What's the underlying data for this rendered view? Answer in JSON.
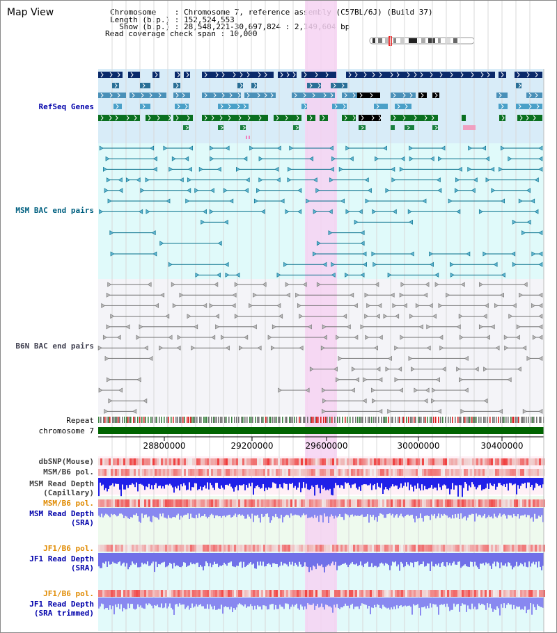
{
  "view_title": "Map View",
  "info": {
    "chromosome": "Chromosome    : Chromosome 7, reference assembly (C57BL/6J) (Build 37)",
    "length": "Length (b.p.) : 152,524,553",
    "show": "  Show (b.p.) : 28,548,221-30,697,824 : 2,149,604 bp",
    "span": "Read coverage check span : 10,000"
  },
  "labels": {
    "refseq": "RefSeq Genes",
    "msm_bac": "MSM BAC end pairs",
    "b6n_bac": "B6N BAC end pairs",
    "repeat": "Repeat",
    "chromosome": "chromosome 7",
    "dbsnp": "dbSNP(Mouse)",
    "msm_pol_1": "MSM/B6 pol.",
    "msm_depth_cap": "MSM Read Depth\n(Capillary)",
    "msm_pol_2": "MSM/B6 pol.",
    "msm_depth_sra": "MSM Read Depth\n(SRA)",
    "jf1_pol_1": "JF1/B6 pol.",
    "jf1_depth_sra": "JF1 Read Depth\n(SRA)",
    "jf1_pol_2": "JF1/B6 pol.",
    "jf1_depth_trim": "JF1 Read Depth\n(SRA trimmed)"
  },
  "axis_ticks": [
    "28800000",
    "29200000",
    "29600000",
    "30000000",
    "30400000"
  ],
  "colors": {
    "highlight": "#f6d2f2",
    "refseq_bg": "#d8ecf8",
    "msm_bg": "#e0fafa",
    "b6n_bg": "#f4f4f8",
    "label_blue": "#0000aa",
    "label_teal": "#006080",
    "label_gray": "#404050",
    "label_orange": "#e08a00",
    "chromosome_green": "#006400"
  }
}
